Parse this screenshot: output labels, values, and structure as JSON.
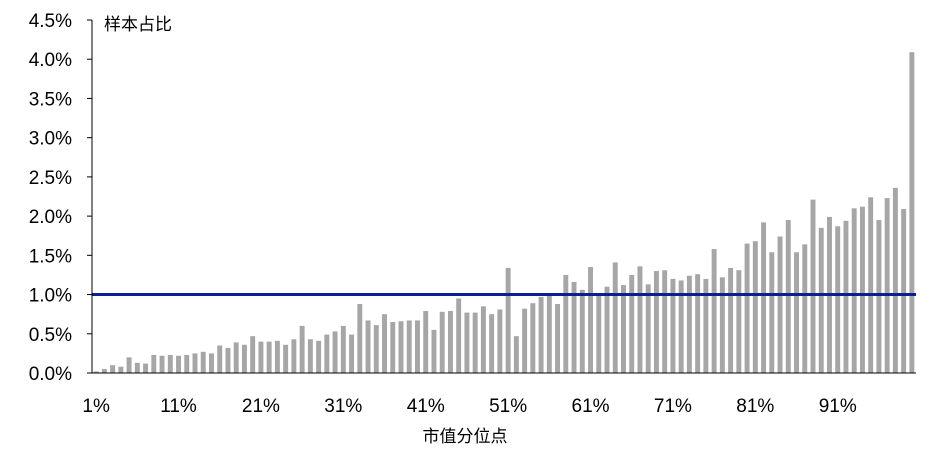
{
  "chart_data": {
    "type": "bar",
    "ylabel": "样本占比",
    "xlabel": "市值分位点",
    "ylim": [
      0,
      4.5
    ],
    "yticks": [
      "0.0%",
      "0.5%",
      "1.0%",
      "1.5%",
      "2.0%",
      "2.5%",
      "3.0%",
      "3.5%",
      "4.0%",
      "4.5%"
    ],
    "xticks": [
      "1%",
      "11%",
      "21%",
      "31%",
      "41%",
      "51%",
      "61%",
      "71%",
      "81%",
      "91%"
    ],
    "bar_color": "#a6a6a6",
    "reference_line": {
      "value": 1.0,
      "color": "#0b1f8f"
    },
    "grid": false,
    "legend": "none",
    "series": [
      {
        "values": [
          0.02,
          0.05,
          0.1,
          0.08,
          0.2,
          0.13,
          0.12,
          0.23,
          0.22,
          0.23,
          0.22,
          0.23,
          0.25,
          0.27,
          0.25,
          0.35,
          0.32,
          0.39,
          0.36,
          0.47,
          0.4,
          0.4,
          0.41,
          0.36,
          0.43,
          0.6,
          0.43,
          0.41,
          0.49,
          0.53,
          0.6,
          0.49,
          0.88,
          0.67,
          0.61,
          0.75,
          0.65,
          0.66,
          0.67,
          0.67,
          0.79,
          0.55,
          0.78,
          0.79,
          0.95,
          0.77,
          0.77,
          0.85,
          0.75,
          0.81,
          1.34,
          0.47,
          0.82,
          0.89,
          0.97,
          1.0,
          0.88,
          1.25,
          1.16,
          1.06,
          1.35,
          1.0,
          1.1,
          1.41,
          1.12,
          1.25,
          1.36,
          1.13,
          1.3,
          1.31,
          1.2,
          1.18,
          1.24,
          1.26,
          1.2,
          1.58,
          1.22,
          1.34,
          1.31,
          1.65,
          1.68,
          1.92,
          1.54,
          1.74,
          1.95,
          1.54,
          1.64,
          2.21,
          1.85,
          1.99,
          1.87,
          1.94,
          2.1,
          2.12,
          2.24,
          1.95,
          2.23,
          2.36,
          2.09,
          4.09
        ]
      }
    ]
  }
}
